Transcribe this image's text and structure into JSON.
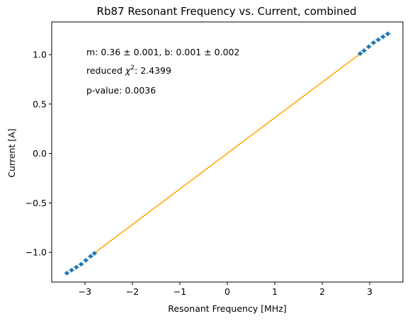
{
  "chart_data": {
    "type": "scatter",
    "title": "Rb87 Resonant Frequency vs. Current, combined",
    "xlabel": "Resonant Frequency [MHz]",
    "ylabel": "Current [A]",
    "xlim": [
      -3.7,
      3.7
    ],
    "ylim": [
      -1.3,
      1.33
    ],
    "x_ticks": [
      -3,
      -2,
      -1,
      0,
      1,
      2,
      3
    ],
    "y_ticks": [
      -1.0,
      -0.5,
      0.0,
      0.5,
      1.0
    ],
    "x_tick_labels": [
      "−3",
      "−2",
      "−1",
      "0",
      "1",
      "2",
      "3"
    ],
    "y_tick_labels": [
      "−1.0",
      "−0.5",
      "0.0",
      "0.5",
      "1.0"
    ],
    "grid": false,
    "series": [
      {
        "kind": "points",
        "color": "#1f77b4",
        "marker": "diamond",
        "x": [
          -3.38,
          -3.28,
          -3.18,
          -3.08,
          -2.98,
          -2.88,
          -2.8,
          2.8,
          2.88,
          2.98,
          3.08,
          3.18,
          3.28,
          3.38
        ],
        "y": [
          -1.21,
          -1.18,
          -1.15,
          -1.12,
          -1.08,
          -1.04,
          -1.01,
          1.01,
          1.04,
          1.08,
          1.12,
          1.15,
          1.18,
          1.21
        ]
      },
      {
        "kind": "fit-line",
        "color": "#ffa500",
        "x": [
          -2.8,
          2.8
        ],
        "y": [
          -1.007,
          1.009
        ]
      }
    ],
    "annotations": {
      "fit_params": "m: 0.36 ± 0.001, b: 0.001 ± 0.002",
      "chi2_prefix": "reduced ",
      "chi2_symbol": "χ",
      "chi2_sup": "2",
      "chi2_value": ": 2.4399",
      "p_value": "p-value: 0.0036"
    }
  }
}
